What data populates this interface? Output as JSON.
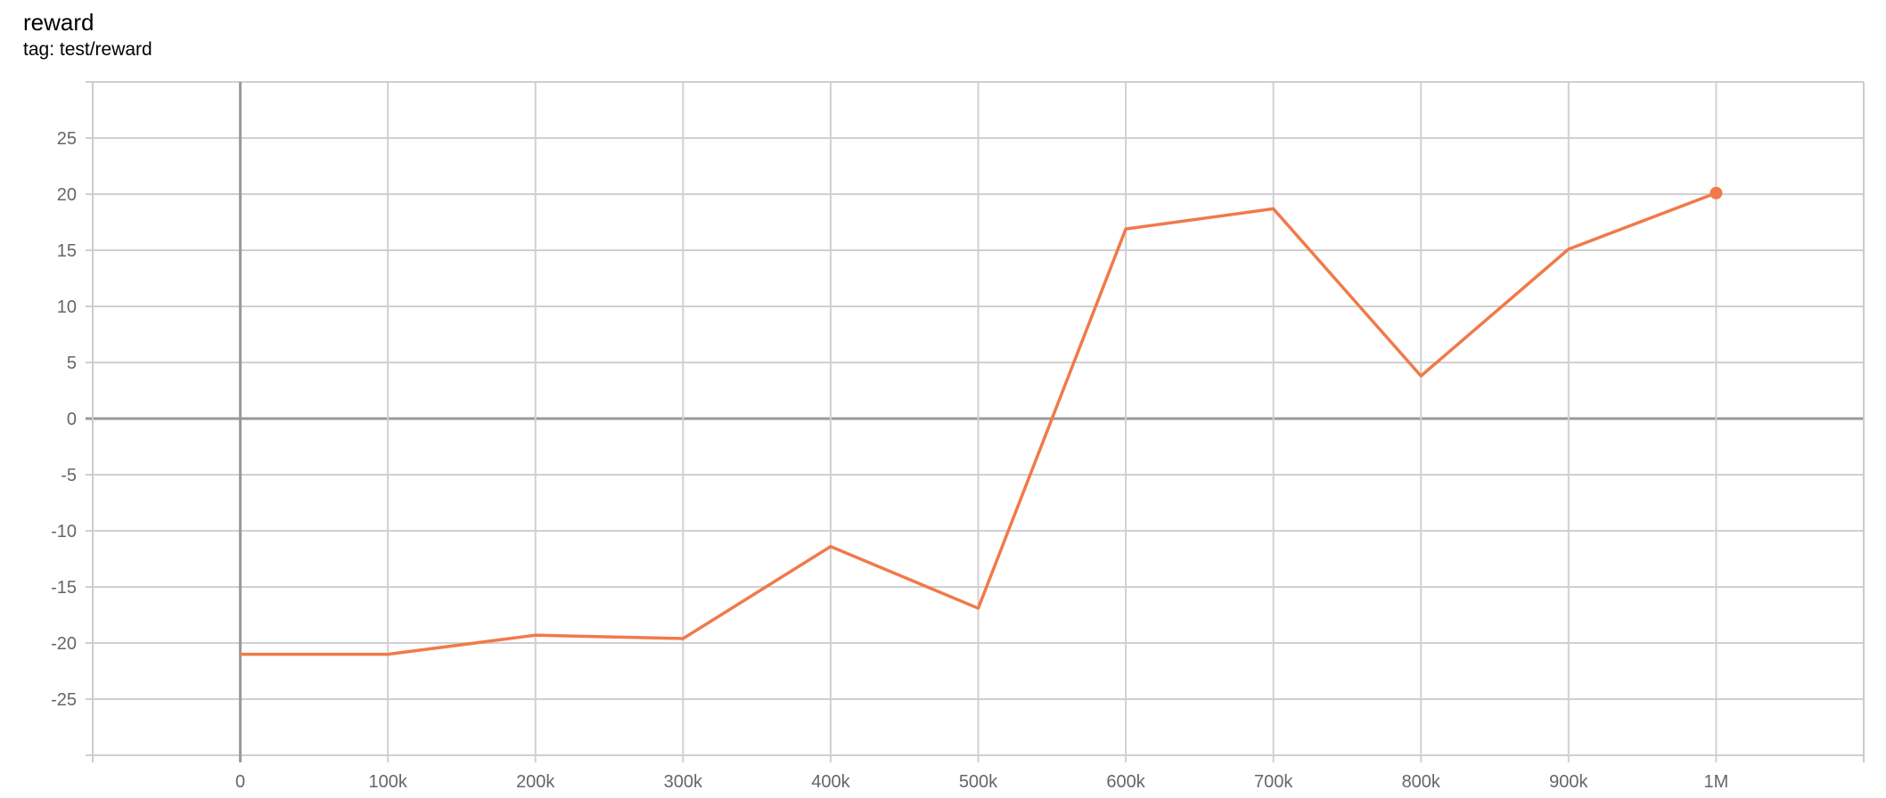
{
  "header": {
    "title": "reward",
    "subtitle": "tag: test/reward"
  },
  "chart_data": {
    "type": "line",
    "title": "reward",
    "subtitle": "tag: test/reward",
    "xlabel": "",
    "ylabel": "",
    "xlim": [
      -100000,
      1100000
    ],
    "ylim": [
      -30,
      30
    ],
    "grid": true,
    "x_ticks": [
      0,
      100000,
      200000,
      300000,
      400000,
      500000,
      600000,
      700000,
      800000,
      900000,
      1000000
    ],
    "x_tick_labels": [
      "0",
      "100k",
      "200k",
      "300k",
      "400k",
      "500k",
      "600k",
      "700k",
      "800k",
      "900k",
      "1M"
    ],
    "y_ticks": [
      -25,
      -20,
      -15,
      -10,
      -5,
      0,
      5,
      10,
      15,
      20,
      25
    ],
    "y_tick_labels": [
      "-25",
      "-20",
      "-15",
      "-10",
      "-5",
      "0",
      "5",
      "10",
      "15",
      "20",
      "25"
    ],
    "series": [
      {
        "color": "#f07a4a",
        "x": [
          0,
          100000,
          200000,
          300000,
          400000,
          500000,
          600000,
          700000,
          800000,
          900000,
          1000000
        ],
        "y": [
          -21.0,
          -21.0,
          -19.3,
          -19.6,
          -11.4,
          -16.9,
          16.9,
          18.7,
          3.8,
          15.1,
          20.1
        ]
      }
    ]
  }
}
